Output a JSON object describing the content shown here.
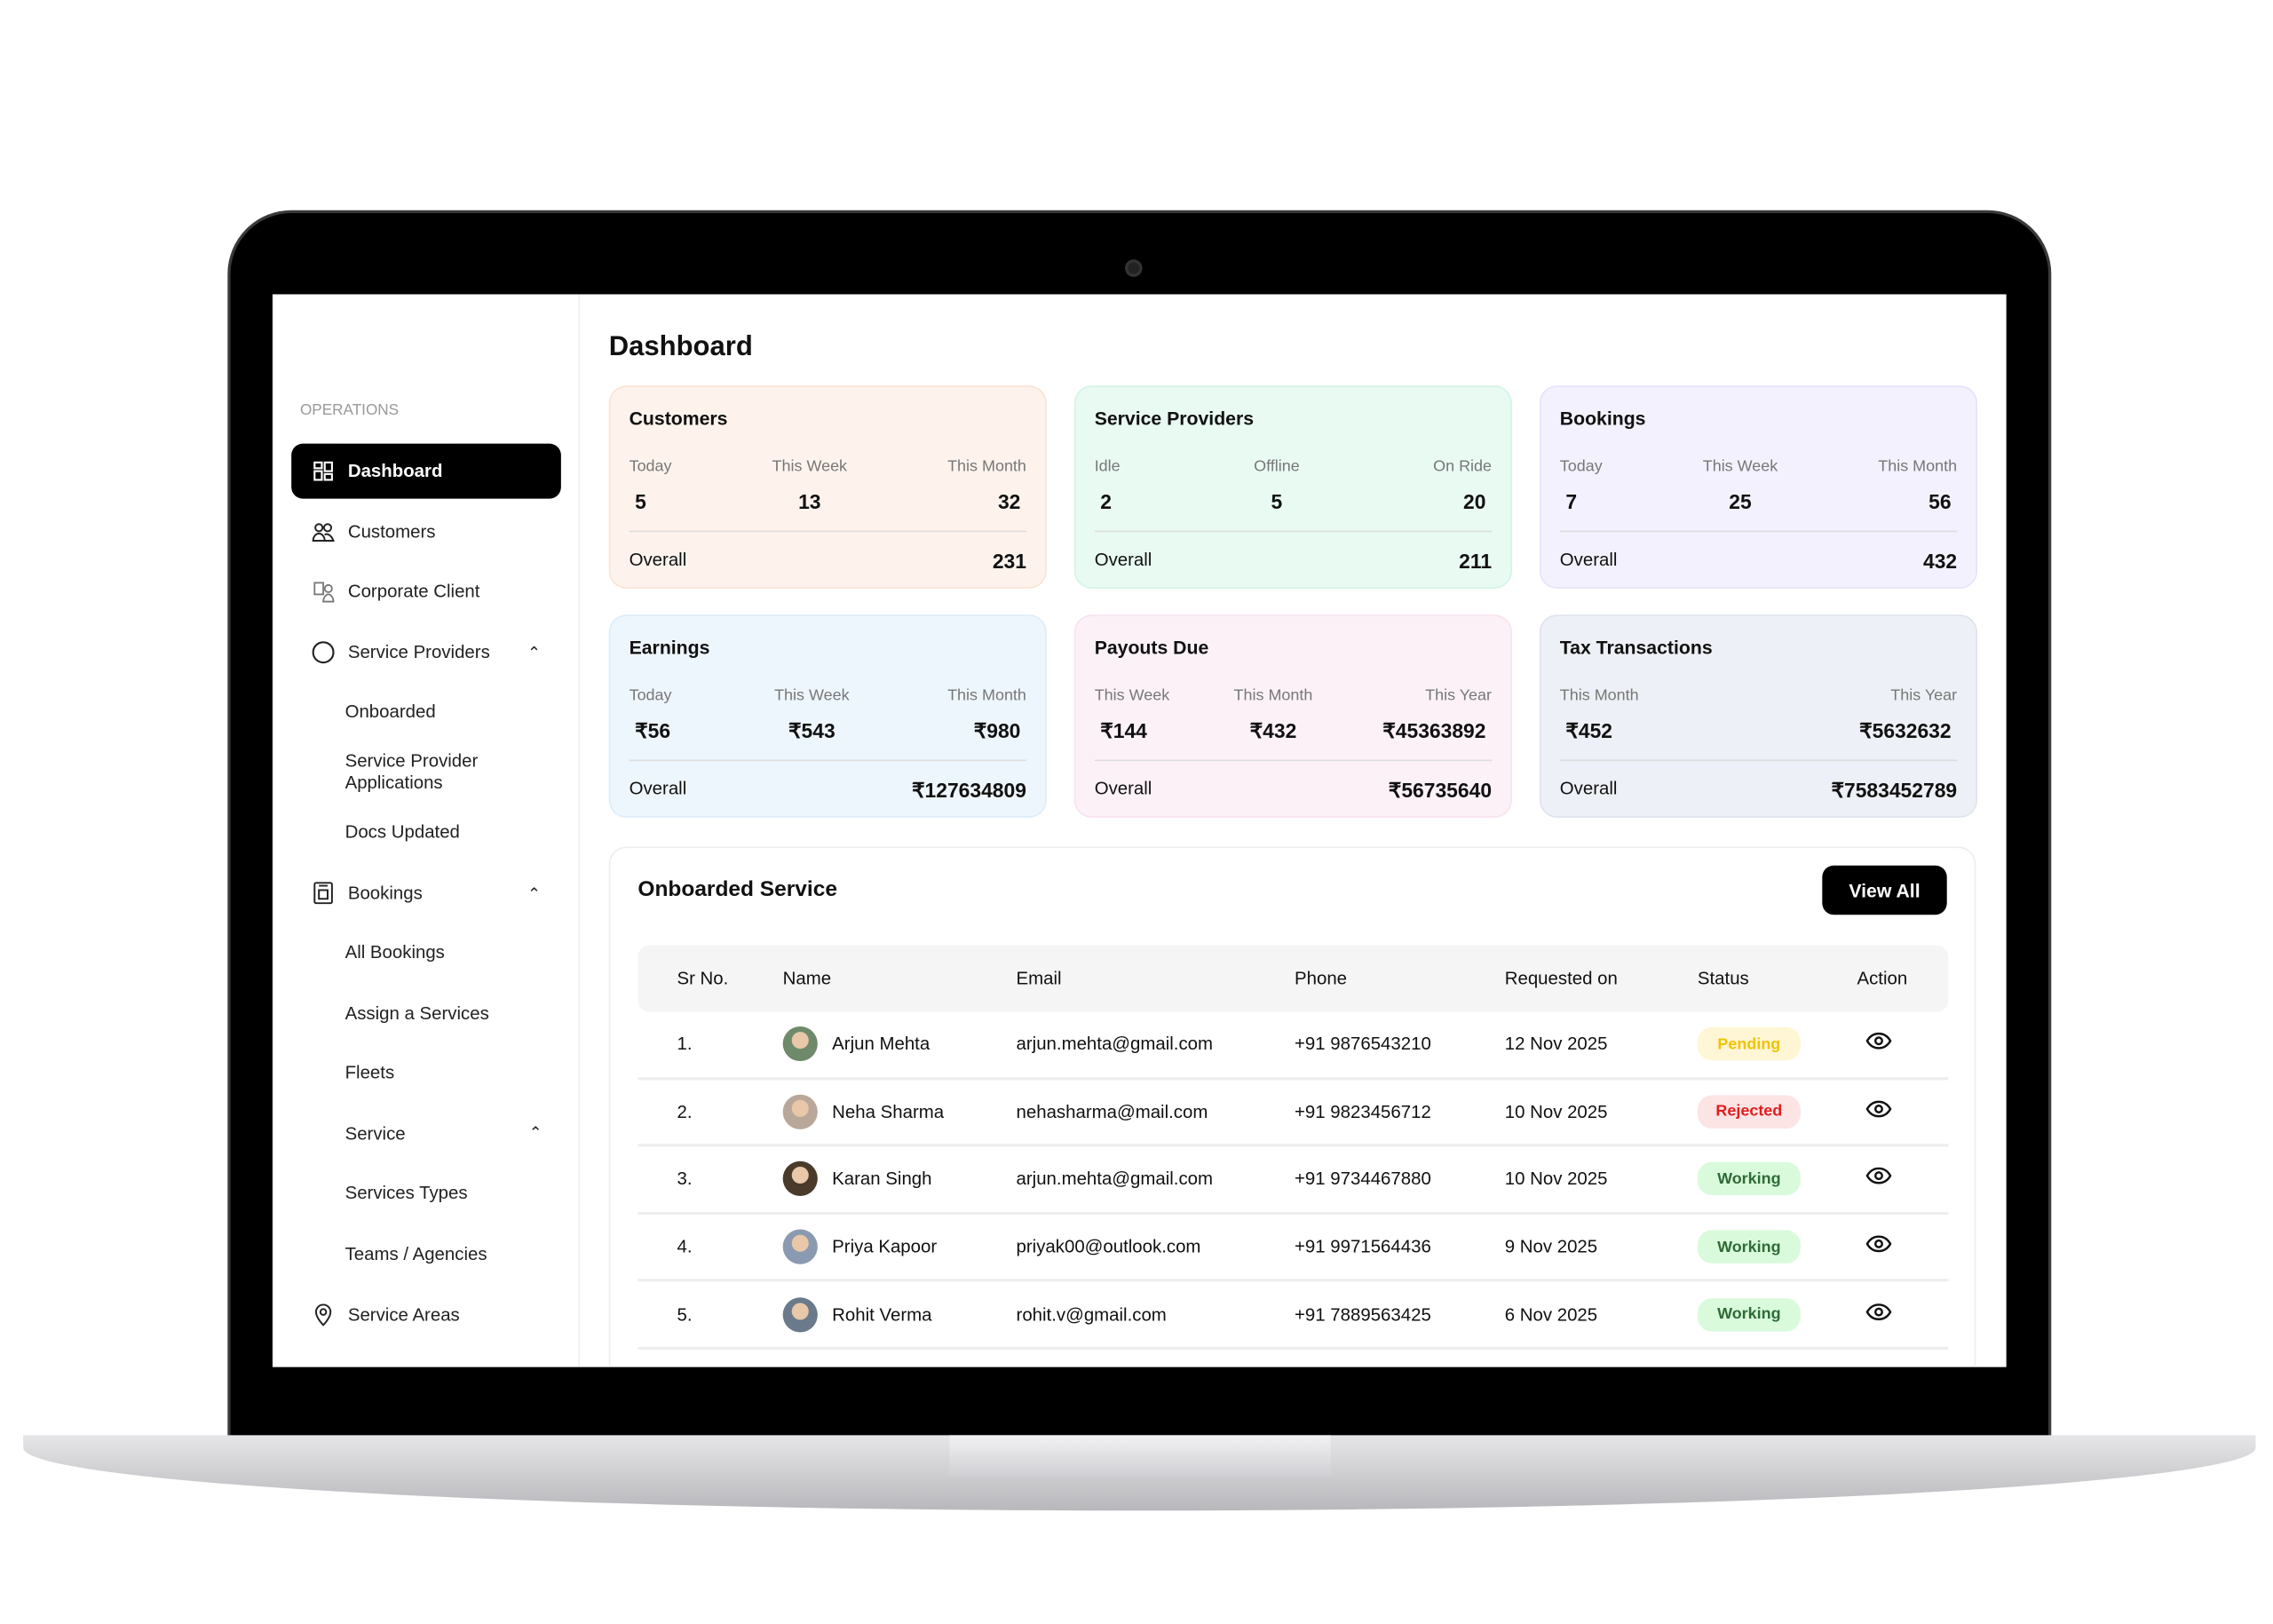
{
  "page": {
    "title": "Dashboard"
  },
  "sidebar": {
    "section": "OPERATIONS",
    "items": [
      {
        "label": "Dashboard",
        "icon": "grid-icon",
        "active": true
      },
      {
        "label": "Customers",
        "icon": "users-icon"
      },
      {
        "label": "Corporate Client",
        "icon": "corporate-icon"
      },
      {
        "label": "Service Providers",
        "icon": "circle-icon",
        "expanded": true
      },
      {
        "label": "Bookings",
        "icon": "bookings-icon",
        "expanded": true
      },
      {
        "label": "Service Areas",
        "icon": "map-pin-icon"
      }
    ],
    "service_provider_sub": [
      "Onboarded",
      "Service Provider Applications",
      "Docs Updated"
    ],
    "bookings_sub": [
      "All Bookings",
      "Assign a Services",
      "Fleets"
    ],
    "service": {
      "label": "Service",
      "expanded": true,
      "sub": [
        "Services Types",
        "Teams / Agencies"
      ]
    }
  },
  "cards": [
    {
      "title": "Customers",
      "bg": "#fdf3ec",
      "border": "#fbe3d4",
      "stats": [
        {
          "label": "Today",
          "value": "5"
        },
        {
          "label": "This Week",
          "value": "13"
        },
        {
          "label": "This Month",
          "value": "32"
        }
      ],
      "overall_label": "Overall",
      "overall": "231"
    },
    {
      "title": "Service Providers",
      "bg": "#e9faf3",
      "border": "#d3f4e5",
      "stats": [
        {
          "label": "Idle",
          "value": "2"
        },
        {
          "label": "Offline",
          "value": "5"
        },
        {
          "label": "On Ride",
          "value": "20"
        }
      ],
      "overall_label": "Overall",
      "overall": "211"
    },
    {
      "title": "Bookings",
      "bg": "#f3f1fd",
      "border": "#e6e2fa",
      "stats": [
        {
          "label": "Today",
          "value": "7"
        },
        {
          "label": "This Week",
          "value": "25"
        },
        {
          "label": "This Month",
          "value": "56"
        }
      ],
      "overall_label": "Overall",
      "overall": "432"
    },
    {
      "title": "Earnings",
      "bg": "#eef6fd",
      "border": "#dcecfa",
      "stats": [
        {
          "label": "Today",
          "value": "₹56"
        },
        {
          "label": "This Week",
          "value": "₹543"
        },
        {
          "label": "This Month",
          "value": "₹980"
        }
      ],
      "overall_label": "Overall",
      "overall": "₹127634809"
    },
    {
      "title": "Payouts Due",
      "bg": "#fdf1f8",
      "border": "#fae1ef",
      "stats": [
        {
          "label": "This Week",
          "value": "₹144"
        },
        {
          "label": "This Month",
          "value": "₹432"
        },
        {
          "label": "This Year",
          "value": "₹45363892"
        }
      ],
      "overall_label": "Overall",
      "overall": "₹56735640"
    },
    {
      "title": "Tax Transactions",
      "bg": "#edf0f6",
      "border": "#dfe3ed",
      "stats": [
        {
          "label": "This Month",
          "value": "₹452"
        },
        {
          "label": "This Year",
          "value": "₹5632632"
        }
      ],
      "overall_label": "Overall",
      "overall": "₹7583452789"
    }
  ],
  "table": {
    "title": "Onboarded Service",
    "view_all": "View All",
    "columns": [
      "Sr No.",
      "Name",
      "Email",
      "Phone",
      "Requested on",
      "Status",
      "Action"
    ],
    "rows": [
      {
        "sr": "1.",
        "name": "Arjun Mehta",
        "email": "arjun.mehta@gmail.com",
        "phone": "+91 9876543210",
        "date": "12 Nov 2025",
        "status": "Pending"
      },
      {
        "sr": "2.",
        "name": "Neha Sharma",
        "email": "nehasharma@mail.com",
        "phone": "+91 9823456712",
        "date": "10 Nov 2025",
        "status": "Rejected"
      },
      {
        "sr": "3.",
        "name": "Karan Singh",
        "email": "arjun.mehta@gmail.com",
        "phone": "+91 9734467880",
        "date": "10 Nov 2025",
        "status": "Working"
      },
      {
        "sr": "4.",
        "name": "Priya Kapoor",
        "email": "priyak00@outlook.com",
        "phone": "+91 9971564436",
        "date": "9 Nov 2025",
        "status": "Working"
      },
      {
        "sr": "5.",
        "name": "Rohit Verma",
        "email": "rohit.v@gmail.com",
        "phone": "+91 7889563425",
        "date": "6 Nov 2025",
        "status": "Working"
      }
    ]
  },
  "status_colors": {
    "Pending": {
      "bg": "#fef6d4",
      "fg": "#f2c200"
    },
    "Rejected": {
      "bg": "#fde4e4",
      "fg": "#e11d1d"
    },
    "Working": {
      "bg": "#d9fbdc",
      "fg": "#2f6b37"
    }
  }
}
